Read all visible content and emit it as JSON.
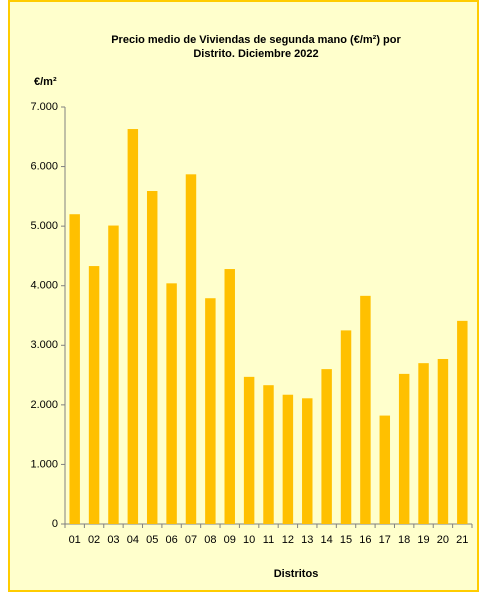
{
  "chart_data": {
    "type": "bar",
    "title": [
      "Precio medio de Viviendas de segunda mano (€/m²) por",
      "Distrito. Diciembre 2022"
    ],
    "y_label": "€/m²",
    "x_label": "Distritos",
    "categories": [
      "01",
      "02",
      "03",
      "04",
      "05",
      "06",
      "07",
      "08",
      "09",
      "10",
      "11",
      "12",
      "13",
      "14",
      "15",
      "16",
      "17",
      "18",
      "19",
      "20",
      "21"
    ],
    "values": [
      5200,
      4330,
      5010,
      6630,
      5590,
      4040,
      5870,
      3790,
      4280,
      2470,
      2330,
      2170,
      2110,
      2600,
      3250,
      3830,
      1820,
      2520,
      2700,
      2770,
      3410
    ],
    "color": "#ffc000",
    "ylim": [
      0,
      7000
    ],
    "yticks": [
      0,
      {
        "value": 1000,
        "label": "1.000"
      },
      {
        "value": 2000,
        "label": "2.000"
      },
      {
        "value": 3000,
        "label": "3.000"
      },
      {
        "value": 4000,
        "label": "4.000"
      },
      {
        "value": 5000,
        "label": "5.000"
      },
      {
        "value": 6000,
        "label": "6.000"
      },
      {
        "value": 7000,
        "label": "7.000"
      }
    ],
    "grid": false
  }
}
